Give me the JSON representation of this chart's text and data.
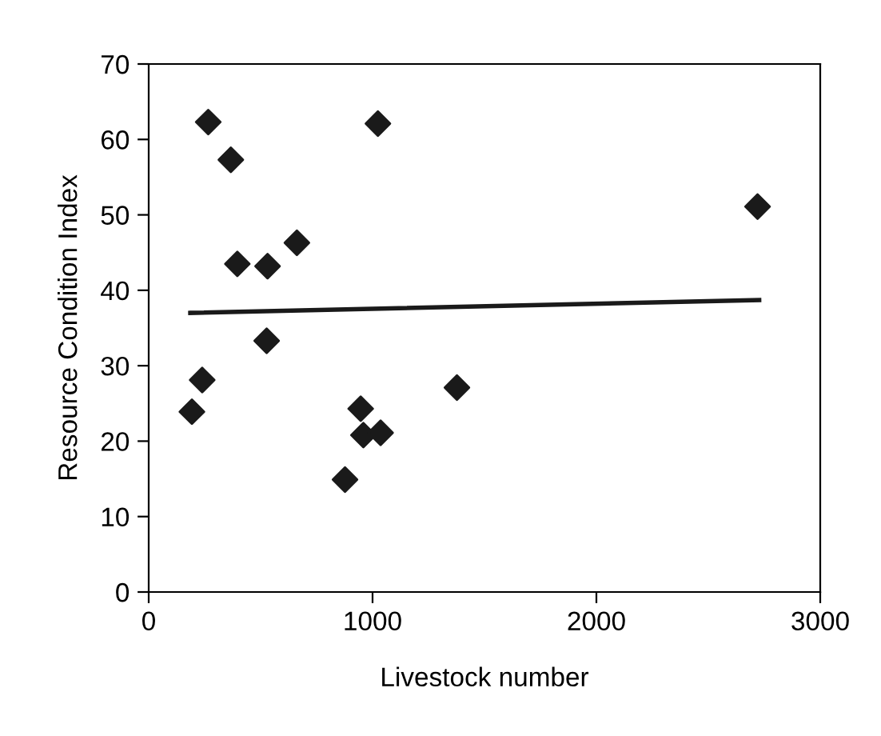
{
  "chart_data": {
    "type": "scatter",
    "xlabel": "Livestock number",
    "ylabel": "Resource Condition Index",
    "xlim": [
      0,
      3000
    ],
    "xticks": [
      0,
      1000,
      2000,
      3000
    ],
    "ylim": [
      0,
      70
    ],
    "yticks": [
      0,
      10,
      20,
      30,
      40,
      50,
      60,
      70
    ],
    "grid": false,
    "legend": false,
    "series": [
      {
        "color": "#1a1a1a",
        "marker": "diamond",
        "x": [
          193,
          239,
          266,
          367,
          396,
          527,
          531,
          662,
          877,
          947,
          959,
          1024,
          1036,
          1377,
          2720
        ],
        "values": [
          23.9,
          28.1,
          62.3,
          57.3,
          43.5,
          33.3,
          43.2,
          46.3,
          14.9,
          24.3,
          20.8,
          62.1,
          21.1,
          27.1,
          51.1
        ]
      },
      {
        "type": "line",
        "color": "#1a1a1a",
        "marker": "none",
        "line_style": "solid",
        "x": [
          186,
          2727
        ],
        "values": [
          37.0,
          38.7
        ]
      }
    ]
  }
}
